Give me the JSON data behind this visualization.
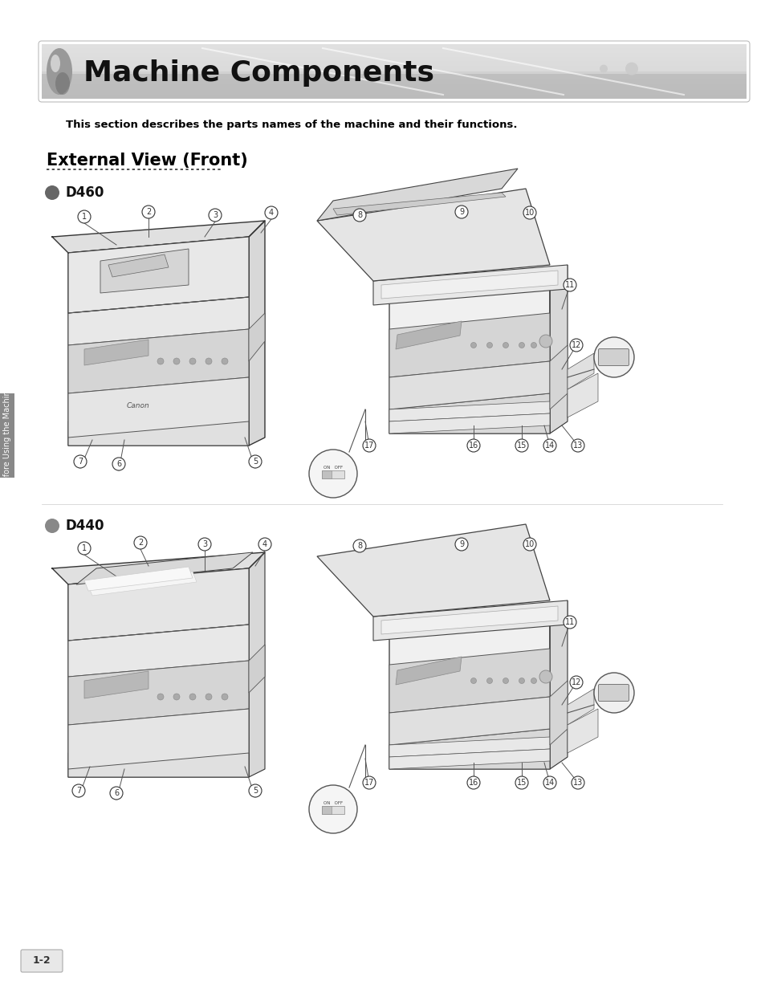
{
  "title": "Machine Components",
  "subtitle": "This section describes the parts names of the machine and their functions.",
  "section_title": "External View (Front)",
  "bg_color": "#ffffff",
  "sidebar_text": "Before Using the Machine",
  "page_label": "1-2",
  "d460_label": "D460",
  "d440_label": "D440",
  "callout_color": "#333333",
  "line_color": "#555555",
  "body_fill": "#f0f0f0",
  "panel_fill": "#d8d8d8",
  "tray_fill": "#e5e5e5"
}
